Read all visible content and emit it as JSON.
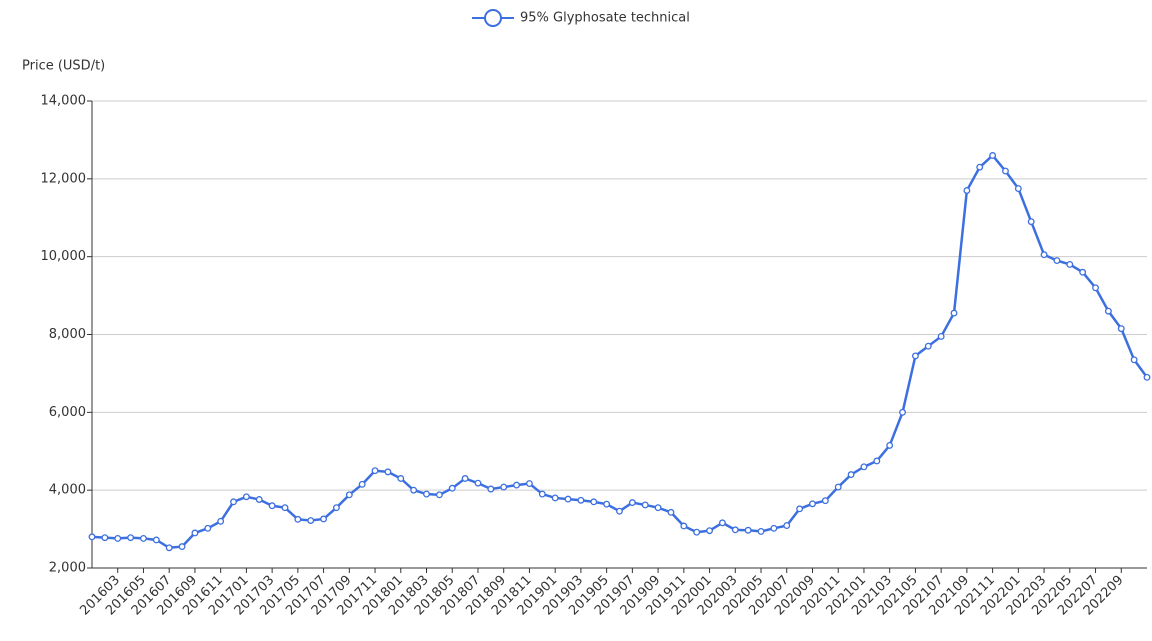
{
  "chart_data": {
    "type": "line",
    "y_axis_label": "Price (USD/t)",
    "categories": [
      null,
      null,
      "201603",
      null,
      "201605",
      null,
      "201607",
      null,
      "201609",
      null,
      "201611",
      null,
      "201701",
      null,
      "201703",
      null,
      "201705",
      null,
      "201707",
      null,
      "201709",
      null,
      "201711",
      null,
      "201801",
      null,
      "201803",
      null,
      "201805",
      null,
      "201807",
      null,
      "201809",
      null,
      "201811",
      null,
      "201901",
      null,
      "201903",
      null,
      "201905",
      null,
      "201907",
      null,
      "201909",
      null,
      "201911",
      null,
      "202001",
      null,
      "202003",
      null,
      "202005",
      null,
      "202007",
      null,
      "202009",
      null,
      "202011",
      null,
      "202101",
      null,
      "202103",
      null,
      "202105",
      null,
      "202107",
      null,
      "202109",
      null,
      "202111",
      null,
      "202201",
      null,
      "202203",
      null,
      "202205",
      null,
      "202207",
      null,
      "202209",
      null,
      null
    ],
    "series": [
      {
        "name": "95% Glyphosate technical",
        "color": "#3c6fe0",
        "values": [
          2800,
          2780,
          2760,
          2780,
          2760,
          2720,
          2520,
          2550,
          2900,
          3020,
          3200,
          3700,
          3830,
          3760,
          3600,
          3550,
          3250,
          3220,
          3260,
          3550,
          3880,
          4150,
          4500,
          4470,
          4300,
          4000,
          3900,
          3880,
          4050,
          4300,
          4180,
          4030,
          4080,
          4130,
          4170,
          3900,
          3800,
          3770,
          3740,
          3700,
          3640,
          3460,
          3680,
          3620,
          3550,
          3430,
          3080,
          2920,
          2960,
          3160,
          2980,
          2970,
          2940,
          3020,
          3090,
          3520,
          3650,
          3730,
          4080,
          4400,
          4600,
          4750,
          5150,
          6000,
          7450,
          7700,
          7950,
          8550,
          11700,
          12300,
          12600,
          12200,
          11750,
          10900,
          10050,
          9900,
          9800,
          9600,
          9200,
          8600,
          8150,
          7350,
          6900
        ]
      }
    ],
    "ylim": [
      2000,
      14000
    ],
    "yticks": [
      {
        "value": 2000,
        "label": "2,000"
      },
      {
        "value": 4000,
        "label": "4,000"
      },
      {
        "value": 6000,
        "label": "6,000"
      },
      {
        "value": 8000,
        "label": "8,000"
      },
      {
        "value": 10000,
        "label": "10,000"
      },
      {
        "value": 12000,
        "label": "12,000"
      },
      {
        "value": 14000,
        "label": "14,000"
      }
    ],
    "grid": true,
    "legend": "top"
  }
}
